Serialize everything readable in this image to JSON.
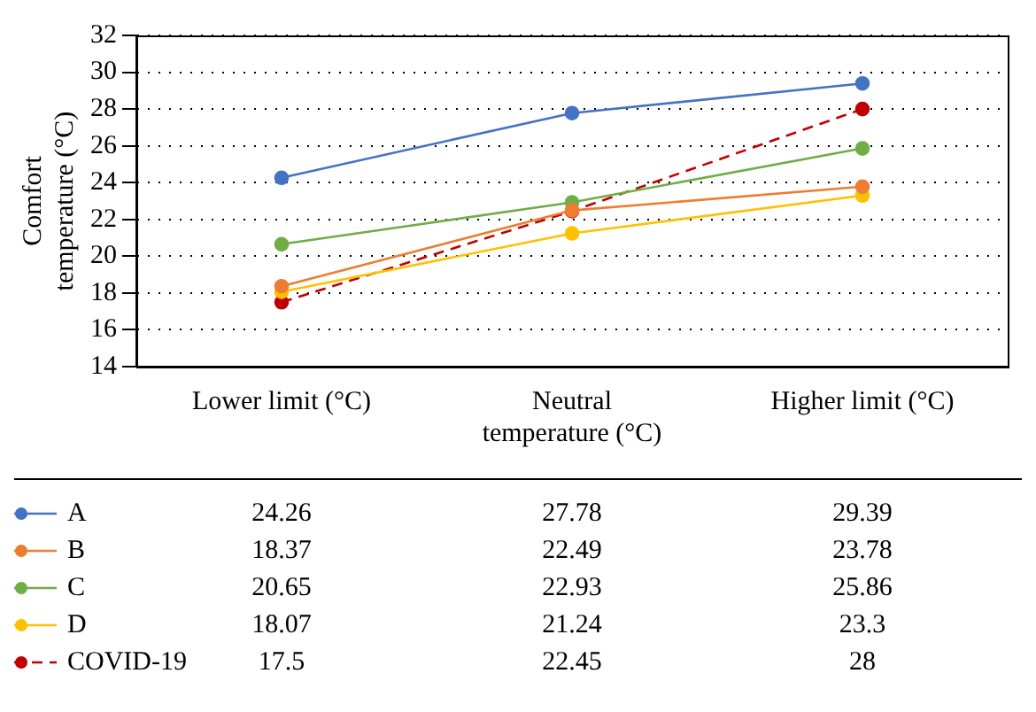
{
  "chart_data": {
    "type": "line",
    "ylabel": "Comfort temperature (°C)",
    "categories": [
      "Lower limit (°C)",
      "Neutral temperature (°C)",
      "Higher limit (°C)"
    ],
    "ylim": [
      14,
      32
    ],
    "yticks": [
      14,
      16,
      18,
      20,
      22,
      24,
      26,
      28,
      30,
      32
    ],
    "grid": "y",
    "legend": "bottom",
    "data_labels": true,
    "marker": "circle",
    "series": [
      {
        "name": "A",
        "color": "#4472c4",
        "values": [
          24.26,
          27.78,
          29.39
        ]
      },
      {
        "name": "B",
        "color": "#ed7d31",
        "values": [
          18.37,
          22.49,
          23.78
        ]
      },
      {
        "name": "C",
        "color": "#70ad47",
        "values": [
          20.65,
          22.93,
          25.86
        ]
      },
      {
        "name": "D",
        "color": "#ffc000",
        "values": [
          18.07,
          21.24,
          23.3
        ]
      },
      {
        "name": "COVID-19",
        "color": "#c00000",
        "values": [
          17.5,
          22.45,
          28
        ],
        "line_style": "dashed"
      }
    ]
  }
}
